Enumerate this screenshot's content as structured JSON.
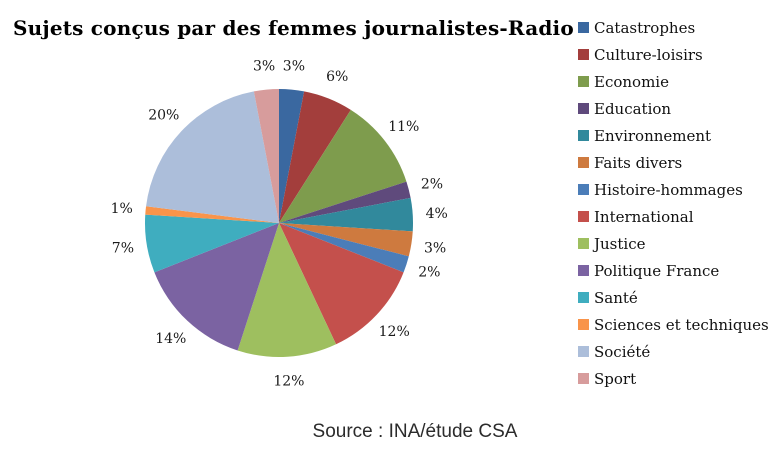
{
  "chart_data": {
    "type": "pie",
    "title": "Sujets conçus par des femmes journalistes-Radio",
    "source": "Source : INA/étude CSA",
    "unit": "%",
    "legend_position": "right",
    "start_angle": "12-oclock",
    "direction": "clockwise",
    "categories": [
      "Catastrophes",
      "Culture-loisirs",
      "Economie",
      "Education",
      "Environnement",
      "Faits divers",
      "Histoire-hommages",
      "International",
      "Justice",
      "Politique France",
      "Santé",
      "Sciences et techniques",
      "Société",
      "Sport"
    ],
    "values": [
      3,
      6,
      11,
      2,
      4,
      3,
      2,
      12,
      12,
      14,
      7,
      1,
      20,
      3
    ],
    "labels": [
      "3%",
      "6%",
      "11%",
      "2%",
      "4%",
      "3%",
      "2%",
      "12%",
      "12%",
      "14%",
      "7%",
      "1%",
      "20%",
      "3%"
    ],
    "colors": [
      "#3A68A0",
      "#A33E3C",
      "#7E9C4D",
      "#5F4A7C",
      "#31899C",
      "#CE7A3F",
      "#4B7DB8",
      "#C4504C",
      "#9EBF5F",
      "#7B63A2",
      "#3FADBF",
      "#F9944A",
      "#ACBEDA",
      "#D79C9C"
    ]
  }
}
